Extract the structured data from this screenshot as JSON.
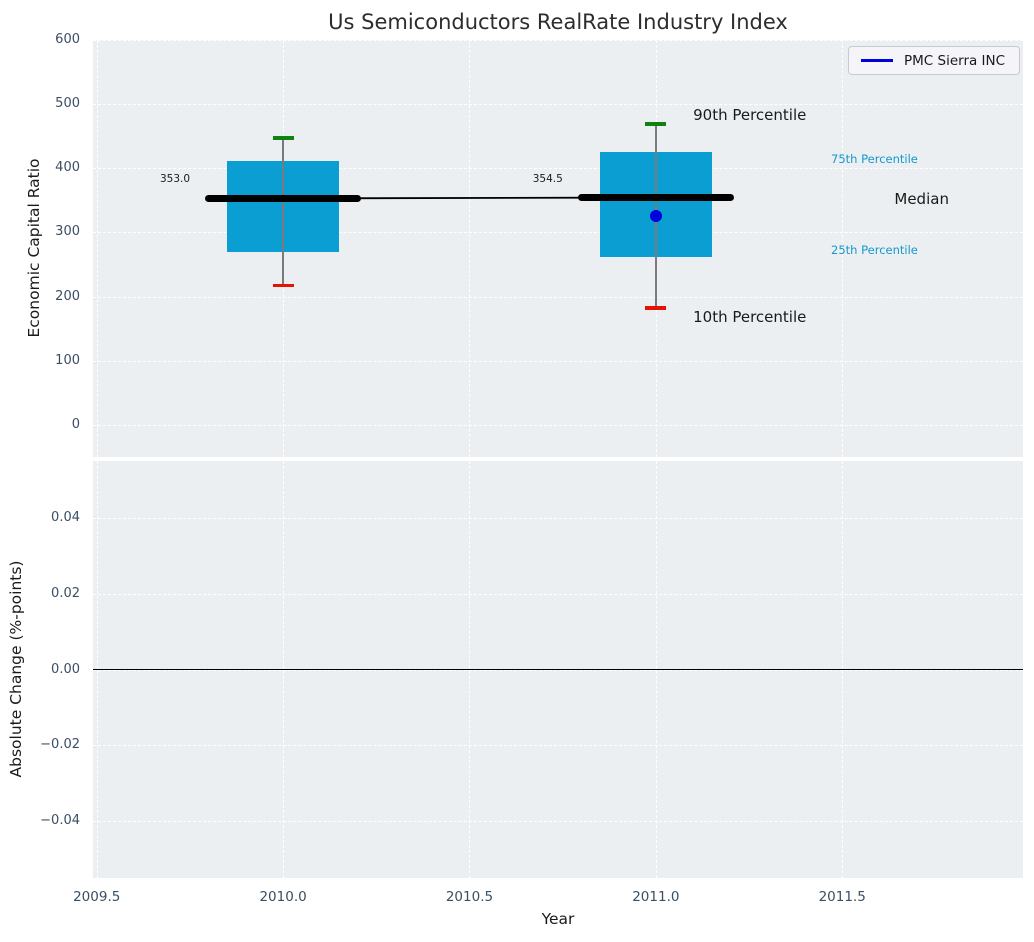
{
  "title": "Us Semiconductors RealRate Industry Index",
  "legend": {
    "entries": [
      {
        "label": "PMC Sierra INC",
        "color": "#0000dd",
        "type": "line"
      }
    ],
    "position": "upper-right"
  },
  "colors": {
    "axes_background": "#ebeff1",
    "grid": "#ffffff",
    "box_fill": "#0a9ed2",
    "whisker": "#7a7a7a",
    "cap_high": "#108210",
    "cap_low": "#e51400",
    "median_line": "#000000",
    "trend_line": "#000000",
    "marker": "#0000dd",
    "tick_label": "#3b4e64",
    "title": "#2d2d2d",
    "text": "#1a1a1a",
    "percentile_label": "#1598cd"
  },
  "chart_data": [
    {
      "type": "box",
      "title": "Us Semiconductors RealRate Industry Index",
      "ylabel": "Economic Capital Ratio",
      "xlim": [
        2009.49,
        2011.985
      ],
      "ylim": [
        -50,
        600
      ],
      "grid": true,
      "xtick_values": [
        2009.5,
        2010.0,
        2010.5,
        2011.0,
        2011.5
      ],
      "yticks": [
        {
          "v": 0,
          "label": "0"
        },
        {
          "v": 100,
          "label": "100"
        },
        {
          "v": 200,
          "label": "200"
        },
        {
          "v": 300,
          "label": "300"
        },
        {
          "v": 400,
          "label": "400"
        },
        {
          "v": 500,
          "label": "500"
        },
        {
          "v": 600,
          "label": "600"
        }
      ],
      "boxes": [
        {
          "x": 2010,
          "whisker_low": 217,
          "q1": 269,
          "median": 353.0,
          "q3": 412,
          "whisker_high": 447,
          "box_halfwidth": 0.15,
          "median_halfwidth": 0.21
        },
        {
          "x": 2011,
          "whisker_low": 182,
          "q1": 261,
          "median": 354.5,
          "q3": 425,
          "whisker_high": 469,
          "box_halfwidth": 0.15,
          "median_halfwidth": 0.21
        }
      ],
      "median_trend": {
        "x": [
          2010,
          2011
        ],
        "y": [
          353.0,
          354.5
        ]
      },
      "series": [
        {
          "name": "PMC Sierra INC",
          "points": [
            {
              "x": 2011,
              "y": 326
            }
          ],
          "color": "#0000dd"
        }
      ],
      "annotations": [
        {
          "name": "median-value-2010",
          "text": "353.0",
          "x": 2009.71,
          "y": 383,
          "size": 10.5,
          "color": "#1a1a1a",
          "anchor": "middle"
        },
        {
          "name": "median-value-2011",
          "text": "354.5",
          "x": 2010.71,
          "y": 383,
          "size": 10.5,
          "color": "#1a1a1a",
          "anchor": "middle"
        },
        {
          "name": "90th-percentile-label",
          "text": "90th Percentile",
          "x": 2011.1,
          "y": 483,
          "size": 15,
          "color": "#1a1a1a",
          "anchor": "start"
        },
        {
          "name": "10th-percentile-label",
          "text": "10th Percentile",
          "x": 2011.1,
          "y": 169,
          "size": 15,
          "color": "#1a1a1a",
          "anchor": "start"
        },
        {
          "name": "75th-percentile-label",
          "text": "75th Percentile",
          "x": 2011.47,
          "y": 414,
          "size": 11.5,
          "color": "#1598cd",
          "anchor": "start"
        },
        {
          "name": "median-label",
          "text": "Median",
          "x": 2011.64,
          "y": 352,
          "size": 15,
          "color": "#1a1a1a",
          "anchor": "start"
        },
        {
          "name": "25th-percentile-label",
          "text": "25th Percentile",
          "x": 2011.47,
          "y": 273,
          "size": 11.5,
          "color": "#1598cd",
          "anchor": "start"
        }
      ]
    },
    {
      "type": "line",
      "ylabel": "Absolute Change (%-points)",
      "xlabel": "Year",
      "xlim": [
        2009.49,
        2011.985
      ],
      "ylim": [
        -0.055,
        0.055
      ],
      "grid": true,
      "xtick_values": [
        2009.5,
        2010.0,
        2010.5,
        2011.0,
        2011.5
      ],
      "xticks": [
        {
          "v": 2009.5,
          "label": "2009.5"
        },
        {
          "v": 2010.0,
          "label": "2010.0"
        },
        {
          "v": 2010.5,
          "label": "2010.5"
        },
        {
          "v": 2011.0,
          "label": "2011.0"
        },
        {
          "v": 2011.5,
          "label": "2011.5"
        }
      ],
      "yticks": [
        {
          "v": 0.04,
          "label": "0.04"
        },
        {
          "v": 0.02,
          "label": "0.02"
        },
        {
          "v": 0.0,
          "label": "0.00"
        },
        {
          "v": -0.02,
          "label": "−0.02"
        },
        {
          "v": -0.04,
          "label": "−0.04"
        }
      ],
      "zero_line": {
        "y": 0.0,
        "color": "#000000",
        "width": 1.5
      },
      "series": []
    }
  ]
}
